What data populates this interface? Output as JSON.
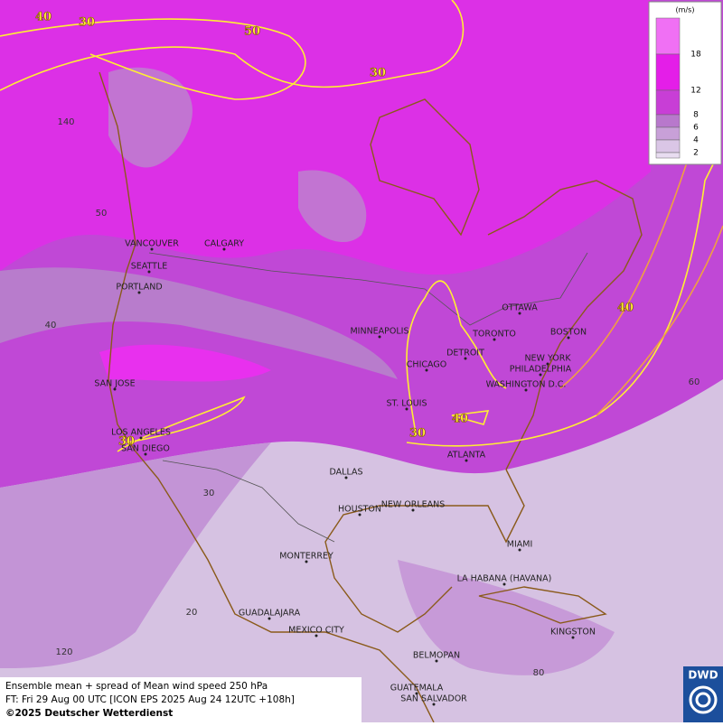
{
  "legend": {
    "title": "(m/s)",
    "levels": [
      {
        "label": "18",
        "color": "#f070f4"
      },
      {
        "label": "12",
        "color": "#e41ee8"
      },
      {
        "label": "8",
        "color": "#c83ed6"
      },
      {
        "label": "6",
        "color": "#b878cc"
      },
      {
        "label": "4",
        "color": "#c8a0d8"
      },
      {
        "label": "2",
        "color": "#dac6e6"
      }
    ],
    "lowest_color": "#e8dcf0"
  },
  "contour_labels": [
    40,
    30,
    50,
    30,
    40,
    30,
    40,
    30
  ],
  "graticule_labels": [
    "140",
    "50",
    "40",
    "30",
    "20",
    "120",
    "60",
    "80"
  ],
  "cities": [
    "VANCOUVER",
    "CALGARY",
    "SEATTLE",
    "PORTLAND",
    "SAN JOSE",
    "LOS ANGELES",
    "SAN DIEGO",
    "MINNEAPOLIS",
    "CHICAGO",
    "ST. LOUIS",
    "DETROIT",
    "TORONTO",
    "OTTAWA",
    "BOSTON",
    "NEW YORK",
    "PHILADELPHIA",
    "WASHINGTON D.C.",
    "ATLANTA",
    "DALLAS",
    "HOUSTON",
    "NEW ORLEANS",
    "MIAMI",
    "MONTERREY",
    "LA HABANA (HAVANA)",
    "GUADALAJARA",
    "MEXICO CITY",
    "KINGSTON",
    "BELMOPAN",
    "GUATEMALA",
    "SAN SALVADOR"
  ],
  "footer": {
    "line1": "Ensemble mean + spread of Mean wind speed 250 hPa",
    "line2": "FT: Fri 29 Aug 00 UTC [ICON EPS 2025 Aug 24 12UTC +108h]",
    "line3": "©2025 Deutscher Wetterdienst"
  },
  "logo": "DWD"
}
